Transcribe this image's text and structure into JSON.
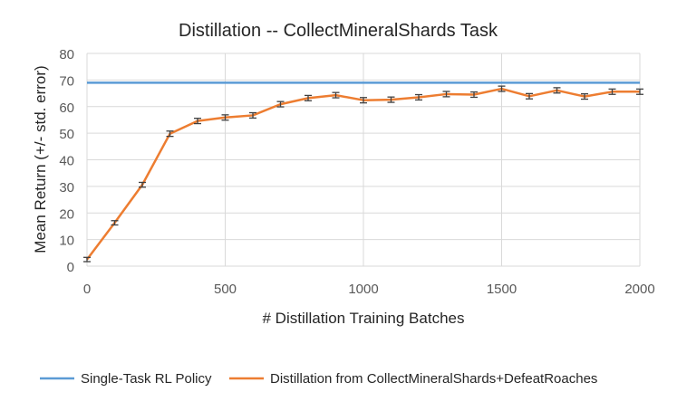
{
  "chart_data": {
    "type": "line",
    "title": "Distillation -- CollectMineralShards Task",
    "xlabel": "# Distillation Training Batches",
    "ylabel": "Mean Return (+/- std. error)",
    "xlim": [
      0,
      2000
    ],
    "ylim": [
      0,
      80
    ],
    "x_ticks": [
      0,
      500,
      1000,
      1500,
      2000
    ],
    "y_ticks": [
      0,
      10,
      20,
      30,
      40,
      50,
      60,
      70,
      80
    ],
    "grid": true,
    "legend_position": "bottom",
    "series": [
      {
        "name": "Single-Task RL Policy",
        "color": "#5B9BD5",
        "style": "horizontal-line",
        "x": [
          0,
          2000
        ],
        "y": [
          69,
          69
        ]
      },
      {
        "name": "Distillation from CollectMineralShards+DefeatRoaches",
        "color": "#ED7D31",
        "error_bar_color": "#404040",
        "x": [
          0,
          100,
          200,
          300,
          400,
          500,
          600,
          700,
          800,
          900,
          1000,
          1100,
          1200,
          1300,
          1400,
          1500,
          1600,
          1700,
          1800,
          1900,
          2000
        ],
        "y": [
          2.5,
          16.3,
          30.6,
          49.8,
          54.6,
          55.9,
          56.7,
          60.9,
          63.2,
          64.3,
          62.4,
          62.6,
          63.5,
          64.7,
          64.5,
          66.7,
          63.9,
          66.1,
          63.8,
          65.6,
          65.6
        ],
        "err": [
          0.8,
          0.8,
          0.9,
          1.0,
          1.0,
          1.0,
          1.0,
          1.0,
          1.0,
          1.0,
          1.0,
          1.0,
          1.0,
          1.0,
          1.0,
          1.0,
          1.0,
          1.0,
          1.0,
          1.0,
          1.0
        ]
      }
    ]
  }
}
